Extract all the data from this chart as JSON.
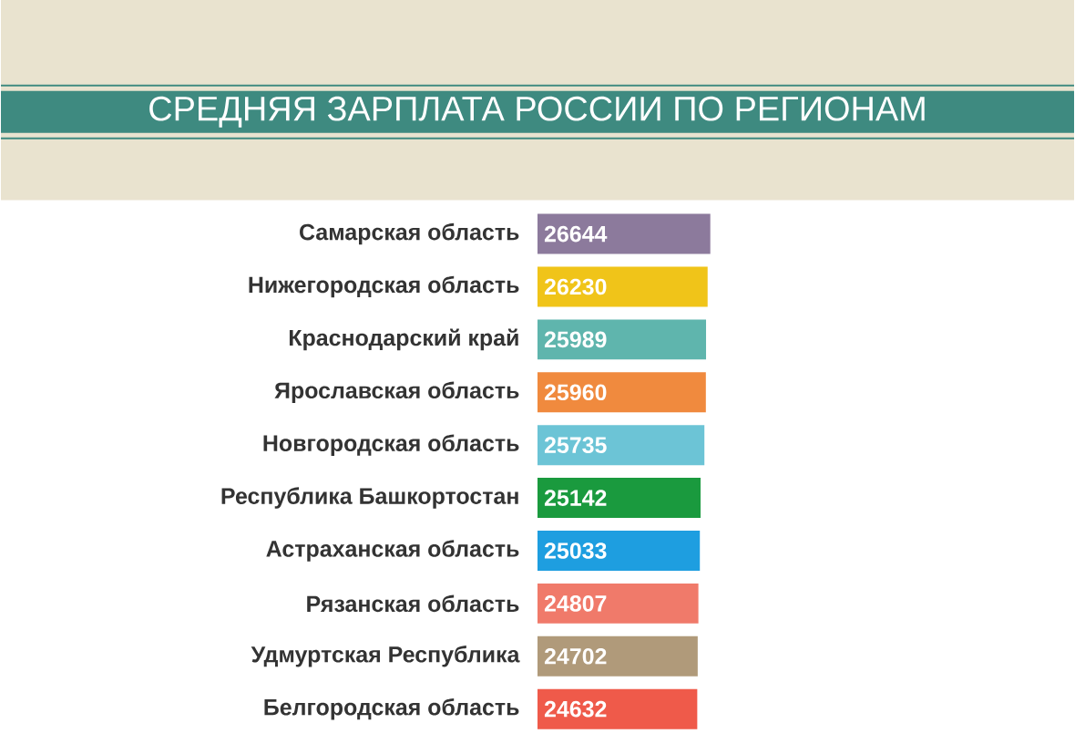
{
  "chart_data": {
    "type": "bar",
    "orientation": "horizontal",
    "title": "СРЕДНЯЯ ЗАРПЛАТА РОССИИ ПО РЕГИОНАМ",
    "categories": [
      "Самарская область",
      "Нижегородская область",
      "Краснодарский край",
      "Ярославская область",
      "Новгородская область",
      "Республика Башкортостан",
      "Астраханская область",
      "Рязанская область",
      "Удмуртская Республика",
      "Белгородская область"
    ],
    "values": [
      26644,
      26230,
      25989,
      25960,
      25735,
      25142,
      25033,
      24807,
      24702,
      24632
    ],
    "colors": [
      "#8c7a9c",
      "#f0c419",
      "#5fb5ad",
      "#f08a3e",
      "#6cc4d6",
      "#1a9a3e",
      "#1e9ee0",
      "#f07a6a",
      "#b09a7a",
      "#ef5a4a"
    ],
    "data_labels": true
  }
}
